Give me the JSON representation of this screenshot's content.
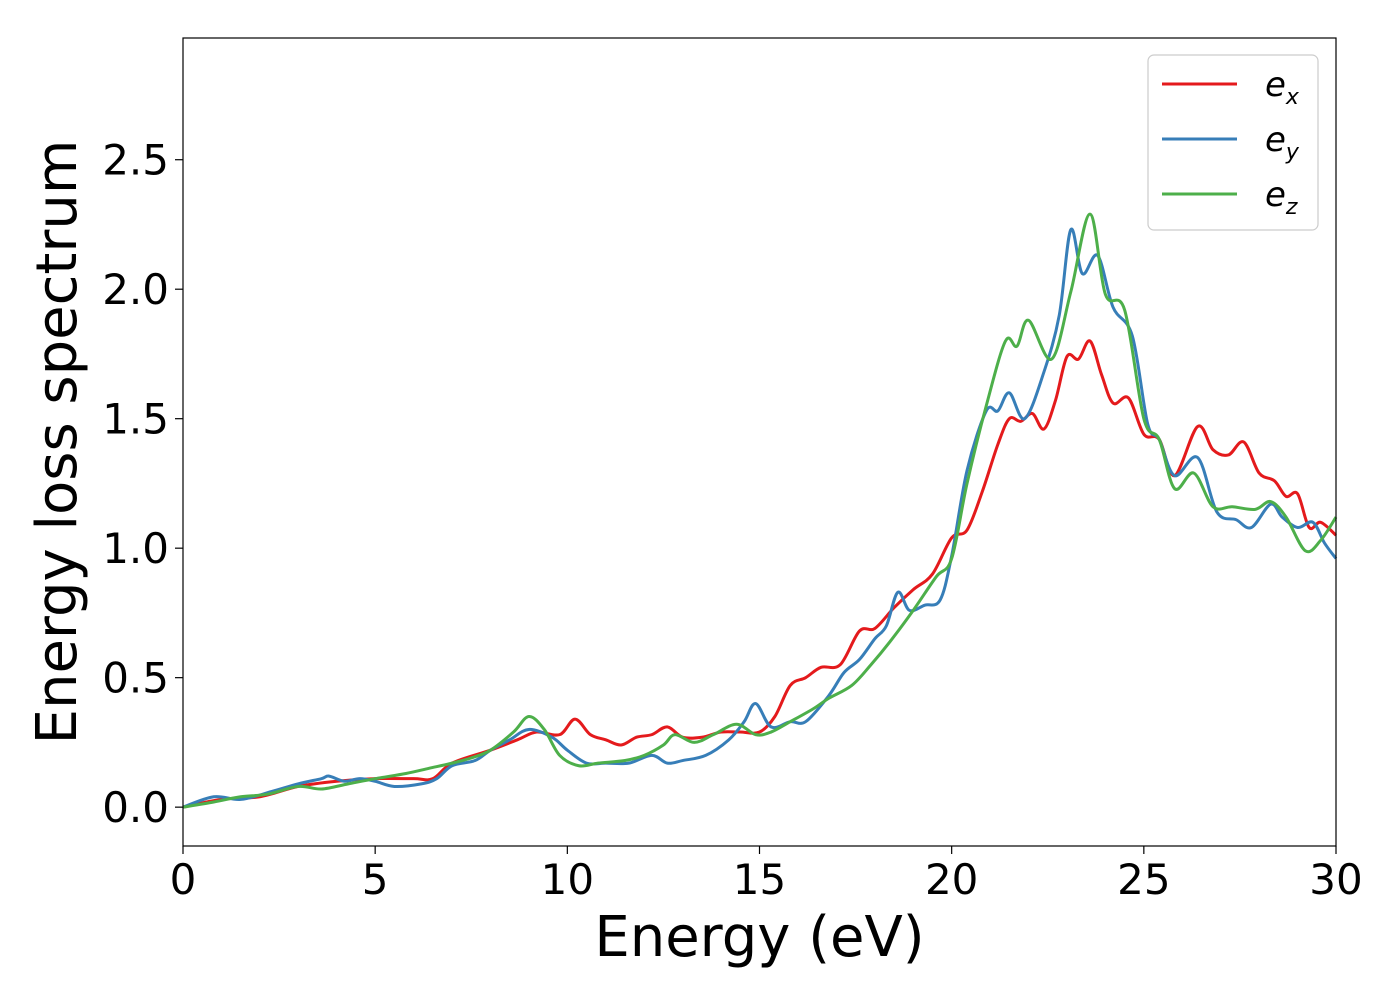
{
  "chart_data": {
    "type": "line",
    "title": "",
    "xlabel": "Energy (eV)",
    "ylabel": "Energy loss spectrum",
    "xlim": [
      0,
      30
    ],
    "ylim": [
      -0.15,
      2.97
    ],
    "x_ticks": [
      0,
      5,
      10,
      15,
      20,
      25,
      30
    ],
    "y_ticks": [
      0.0,
      0.5,
      1.0,
      1.5,
      2.0,
      2.5
    ],
    "x_tick_labels": [
      "0",
      "5",
      "10",
      "15",
      "20",
      "25",
      "30"
    ],
    "y_tick_labels": [
      "0.0",
      "0.5",
      "1.0",
      "1.5",
      "2.0",
      "2.5"
    ],
    "grid": false,
    "legend_position": "top-right",
    "series": [
      {
        "name": "e",
        "subscript": "x",
        "color": "#e41a1c",
        "points": [
          [
            0,
            0.0
          ],
          [
            1,
            0.03
          ],
          [
            2,
            0.04
          ],
          [
            3,
            0.08
          ],
          [
            4,
            0.1
          ],
          [
            5,
            0.11
          ],
          [
            6,
            0.11
          ],
          [
            6.5,
            0.11
          ],
          [
            7,
            0.17
          ],
          [
            8,
            0.22
          ],
          [
            8.7,
            0.26
          ],
          [
            9.2,
            0.29
          ],
          [
            9.8,
            0.28
          ],
          [
            10.2,
            0.34
          ],
          [
            10.6,
            0.28
          ],
          [
            11.0,
            0.26
          ],
          [
            11.4,
            0.24
          ],
          [
            11.8,
            0.27
          ],
          [
            12.2,
            0.28
          ],
          [
            12.6,
            0.31
          ],
          [
            13.0,
            0.27
          ],
          [
            13.5,
            0.27
          ],
          [
            14.0,
            0.29
          ],
          [
            14.5,
            0.29
          ],
          [
            15.0,
            0.29
          ],
          [
            15.4,
            0.35
          ],
          [
            15.8,
            0.47
          ],
          [
            16.2,
            0.5
          ],
          [
            16.6,
            0.54
          ],
          [
            17.1,
            0.55
          ],
          [
            17.6,
            0.68
          ],
          [
            18.0,
            0.69
          ],
          [
            18.5,
            0.77
          ],
          [
            19.0,
            0.84
          ],
          [
            19.5,
            0.9
          ],
          [
            20.0,
            1.04
          ],
          [
            20.4,
            1.07
          ],
          [
            20.8,
            1.22
          ],
          [
            21.2,
            1.4
          ],
          [
            21.5,
            1.5
          ],
          [
            21.8,
            1.49
          ],
          [
            22.1,
            1.52
          ],
          [
            22.4,
            1.46
          ],
          [
            22.7,
            1.57
          ],
          [
            23.0,
            1.74
          ],
          [
            23.3,
            1.73
          ],
          [
            23.6,
            1.8
          ],
          [
            23.9,
            1.67
          ],
          [
            24.2,
            1.56
          ],
          [
            24.6,
            1.58
          ],
          [
            25.0,
            1.44
          ],
          [
            25.4,
            1.42
          ],
          [
            25.8,
            1.28
          ],
          [
            26.4,
            1.47
          ],
          [
            26.8,
            1.38
          ],
          [
            27.2,
            1.36
          ],
          [
            27.6,
            1.41
          ],
          [
            28.0,
            1.29
          ],
          [
            28.4,
            1.26
          ],
          [
            28.7,
            1.2
          ],
          [
            29.0,
            1.21
          ],
          [
            29.3,
            1.08
          ],
          [
            29.6,
            1.1
          ],
          [
            30.0,
            1.05
          ]
        ]
      },
      {
        "name": "e",
        "subscript": "y",
        "color": "#377eb8",
        "points": [
          [
            0,
            0.0
          ],
          [
            0.8,
            0.04
          ],
          [
            1.5,
            0.03
          ],
          [
            2.3,
            0.06
          ],
          [
            3.0,
            0.09
          ],
          [
            3.6,
            0.11
          ],
          [
            3.8,
            0.12
          ],
          [
            4.2,
            0.1
          ],
          [
            4.6,
            0.11
          ],
          [
            5.0,
            0.1
          ],
          [
            5.5,
            0.08
          ],
          [
            6.2,
            0.09
          ],
          [
            6.6,
            0.11
          ],
          [
            7.0,
            0.16
          ],
          [
            7.6,
            0.18
          ],
          [
            8.0,
            0.22
          ],
          [
            8.5,
            0.26
          ],
          [
            9.0,
            0.3
          ],
          [
            9.6,
            0.27
          ],
          [
            10.0,
            0.22
          ],
          [
            10.5,
            0.17
          ],
          [
            11.0,
            0.17
          ],
          [
            11.6,
            0.17
          ],
          [
            12.2,
            0.2
          ],
          [
            12.6,
            0.17
          ],
          [
            13.0,
            0.18
          ],
          [
            13.6,
            0.2
          ],
          [
            14.2,
            0.26
          ],
          [
            14.6,
            0.33
          ],
          [
            14.9,
            0.4
          ],
          [
            15.3,
            0.31
          ],
          [
            15.8,
            0.33
          ],
          [
            16.2,
            0.33
          ],
          [
            16.8,
            0.43
          ],
          [
            17.2,
            0.52
          ],
          [
            17.6,
            0.57
          ],
          [
            18.0,
            0.65
          ],
          [
            18.3,
            0.7
          ],
          [
            18.6,
            0.83
          ],
          [
            18.9,
            0.76
          ],
          [
            19.3,
            0.78
          ],
          [
            19.7,
            0.8
          ],
          [
            20.0,
            0.97
          ],
          [
            20.4,
            1.3
          ],
          [
            20.9,
            1.53
          ],
          [
            21.2,
            1.53
          ],
          [
            21.5,
            1.6
          ],
          [
            21.9,
            1.5
          ],
          [
            22.4,
            1.68
          ],
          [
            22.8,
            1.9
          ],
          [
            23.1,
            2.23
          ],
          [
            23.4,
            2.06
          ],
          [
            23.8,
            2.13
          ],
          [
            24.2,
            1.93
          ],
          [
            24.7,
            1.82
          ],
          [
            25.1,
            1.48
          ],
          [
            25.4,
            1.42
          ],
          [
            25.8,
            1.28
          ],
          [
            26.4,
            1.35
          ],
          [
            26.9,
            1.14
          ],
          [
            27.4,
            1.11
          ],
          [
            27.8,
            1.08
          ],
          [
            28.3,
            1.17
          ],
          [
            28.6,
            1.12
          ],
          [
            29.0,
            1.08
          ],
          [
            29.4,
            1.1
          ],
          [
            29.7,
            1.02
          ],
          [
            30.0,
            0.96
          ]
        ]
      },
      {
        "name": "e",
        "subscript": "z",
        "color": "#4daf4a",
        "points": [
          [
            0,
            0.0
          ],
          [
            0.8,
            0.02
          ],
          [
            1.5,
            0.04
          ],
          [
            2.2,
            0.05
          ],
          [
            3.0,
            0.08
          ],
          [
            3.6,
            0.07
          ],
          [
            4.3,
            0.09
          ],
          [
            5.0,
            0.11
          ],
          [
            5.8,
            0.13
          ],
          [
            6.4,
            0.15
          ],
          [
            7.0,
            0.17
          ],
          [
            7.5,
            0.19
          ],
          [
            8.0,
            0.22
          ],
          [
            8.6,
            0.29
          ],
          [
            9.0,
            0.35
          ],
          [
            9.4,
            0.3
          ],
          [
            9.8,
            0.2
          ],
          [
            10.3,
            0.16
          ],
          [
            10.8,
            0.17
          ],
          [
            11.5,
            0.18
          ],
          [
            12.0,
            0.2
          ],
          [
            12.5,
            0.24
          ],
          [
            12.8,
            0.28
          ],
          [
            13.3,
            0.25
          ],
          [
            13.8,
            0.28
          ],
          [
            14.4,
            0.32
          ],
          [
            14.9,
            0.28
          ],
          [
            15.3,
            0.29
          ],
          [
            15.8,
            0.33
          ],
          [
            16.4,
            0.38
          ],
          [
            16.8,
            0.42
          ],
          [
            17.4,
            0.47
          ],
          [
            17.9,
            0.55
          ],
          [
            18.4,
            0.64
          ],
          [
            19.0,
            0.76
          ],
          [
            19.6,
            0.89
          ],
          [
            20.0,
            0.96
          ],
          [
            20.4,
            1.25
          ],
          [
            20.9,
            1.55
          ],
          [
            21.4,
            1.8
          ],
          [
            21.7,
            1.78
          ],
          [
            22.0,
            1.88
          ],
          [
            22.6,
            1.73
          ],
          [
            23.1,
            1.99
          ],
          [
            23.6,
            2.29
          ],
          [
            24.0,
            1.98
          ],
          [
            24.5,
            1.92
          ],
          [
            25.0,
            1.5
          ],
          [
            25.4,
            1.42
          ],
          [
            25.8,
            1.23
          ],
          [
            26.3,
            1.29
          ],
          [
            26.8,
            1.16
          ],
          [
            27.3,
            1.16
          ],
          [
            27.9,
            1.15
          ],
          [
            28.3,
            1.18
          ],
          [
            28.7,
            1.12
          ],
          [
            29.2,
            0.99
          ],
          [
            29.6,
            1.03
          ],
          [
            30.0,
            1.12
          ]
        ]
      }
    ]
  }
}
